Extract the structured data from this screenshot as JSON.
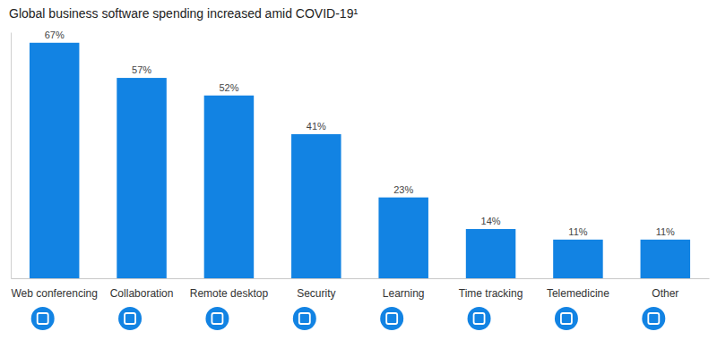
{
  "chart_data": {
    "type": "bar",
    "title": "Global business software spending increased amid COVID-19¹",
    "categories": [
      "Web conferencing",
      "Collaboration",
      "Remote desktop",
      "Security",
      "Learning",
      "Time tracking",
      "Telemedicine",
      "Other"
    ],
    "values": [
      67,
      57,
      52,
      41,
      23,
      14,
      11,
      11
    ],
    "value_labels": [
      "67%",
      "57%",
      "52%",
      "41%",
      "23%",
      "14%",
      "11%",
      "11%"
    ],
    "color": "#1283e3",
    "ylim": [
      0,
      70
    ],
    "grid": false,
    "data_labels": true,
    "tick_labels": "x"
  }
}
